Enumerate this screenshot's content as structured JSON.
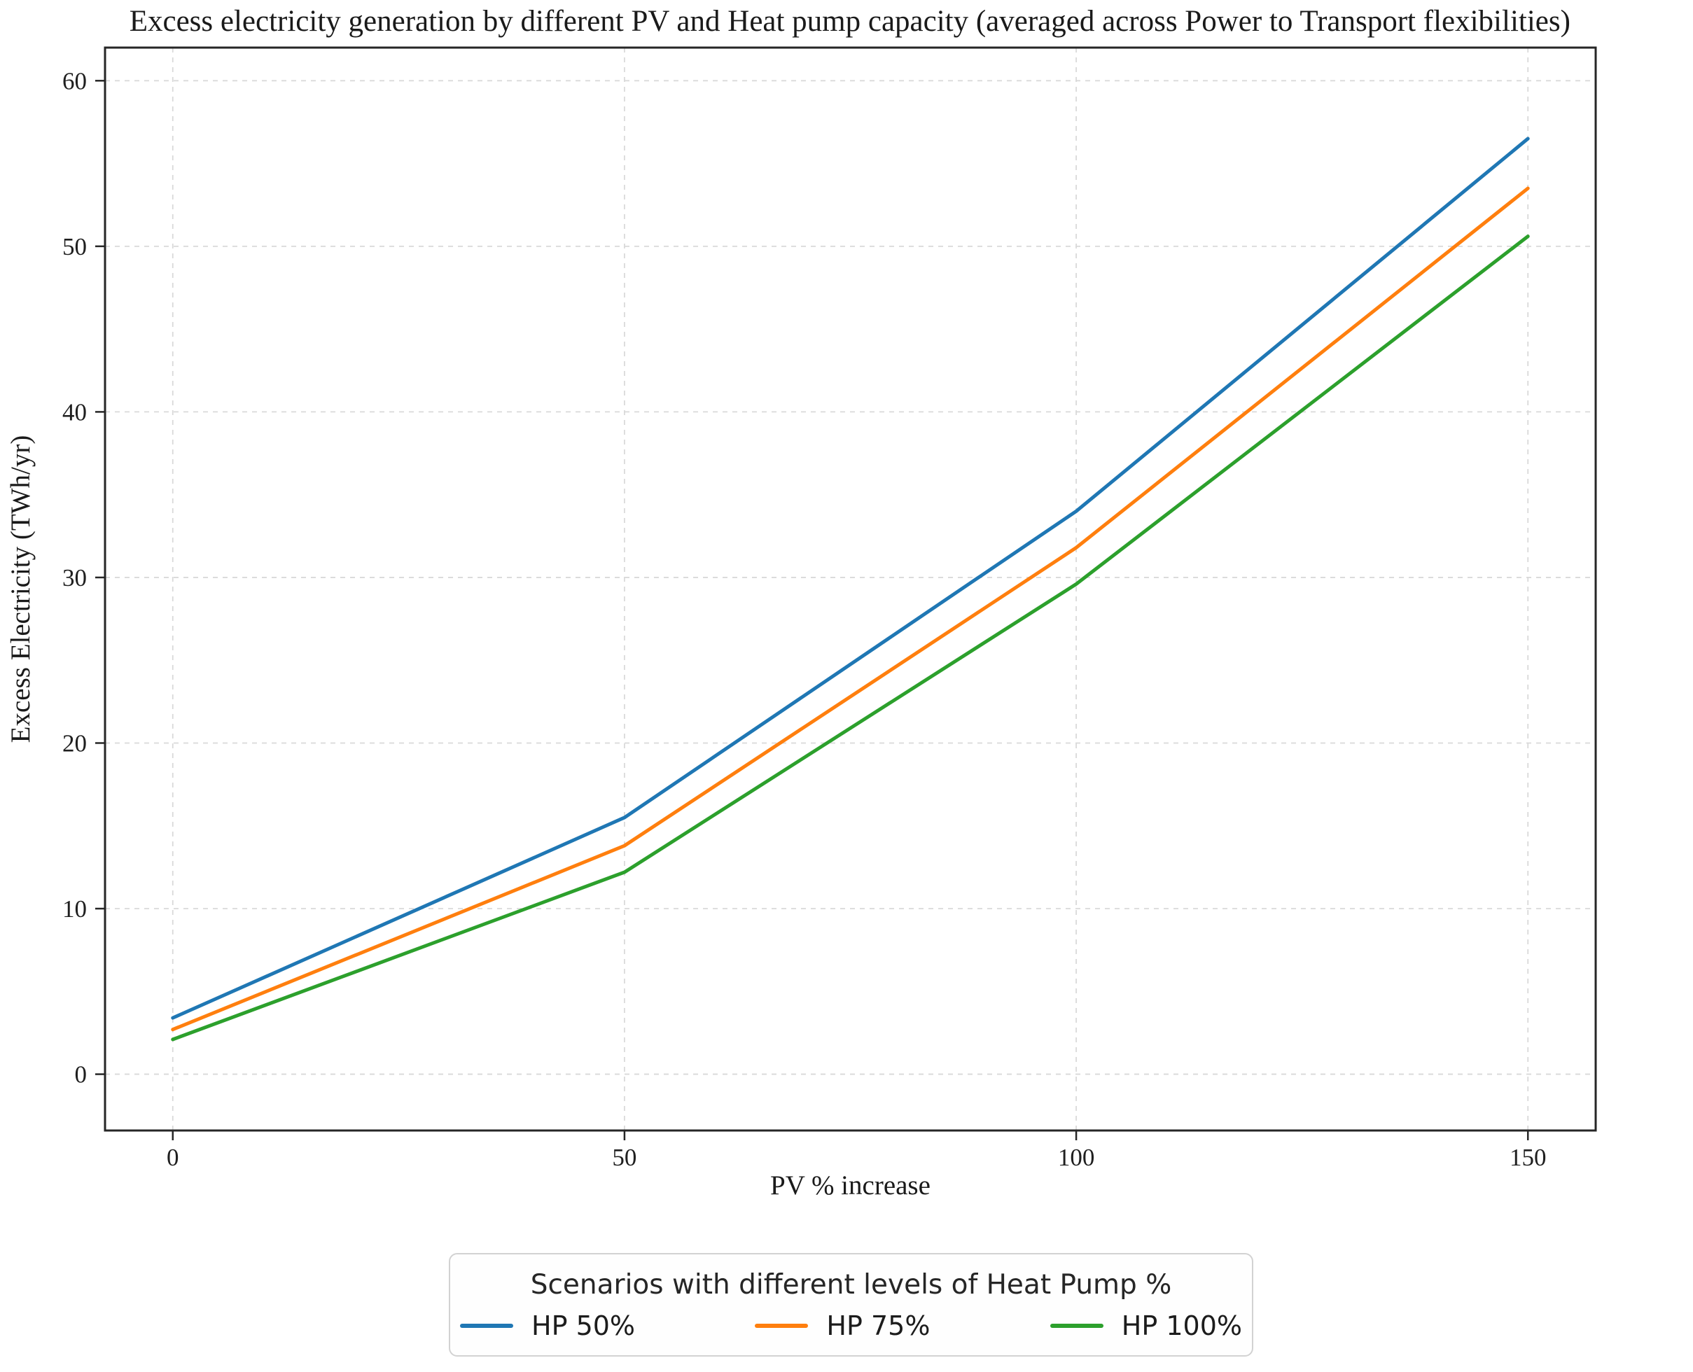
{
  "chart_data": {
    "type": "line",
    "title": "Excess electricity generation by different PV and Heat pump capacity (averaged across Power to Transport flexibilities)",
    "xlabel": "PV % increase",
    "ylabel": "Excess Electricity (TWh/yr)",
    "x": [
      0,
      50,
      100,
      150
    ],
    "series": [
      {
        "name": "HP 50%",
        "color": "#1f77b4",
        "values": [
          3.4,
          15.5,
          34.0,
          56.5
        ]
      },
      {
        "name": "HP 75%",
        "color": "#ff7f0e",
        "values": [
          2.7,
          13.8,
          31.8,
          53.5
        ]
      },
      {
        "name": "HP 100%",
        "color": "#2ca02c",
        "values": [
          2.1,
          12.2,
          29.6,
          50.6
        ]
      }
    ],
    "xticks": [
      0,
      50,
      100,
      150
    ],
    "yticks": [
      0,
      10,
      20,
      30,
      40,
      50,
      60
    ],
    "xlim": [
      -7.5,
      157.5
    ],
    "ylim": [
      -3.4,
      62.0
    ],
    "grid": true,
    "grid_style": "dashed",
    "legend": {
      "title": "Scenarios with different levels of Heat Pump %",
      "position": "bottom",
      "entries": [
        "HP 50%",
        "HP 75%",
        "HP 100%"
      ]
    }
  }
}
